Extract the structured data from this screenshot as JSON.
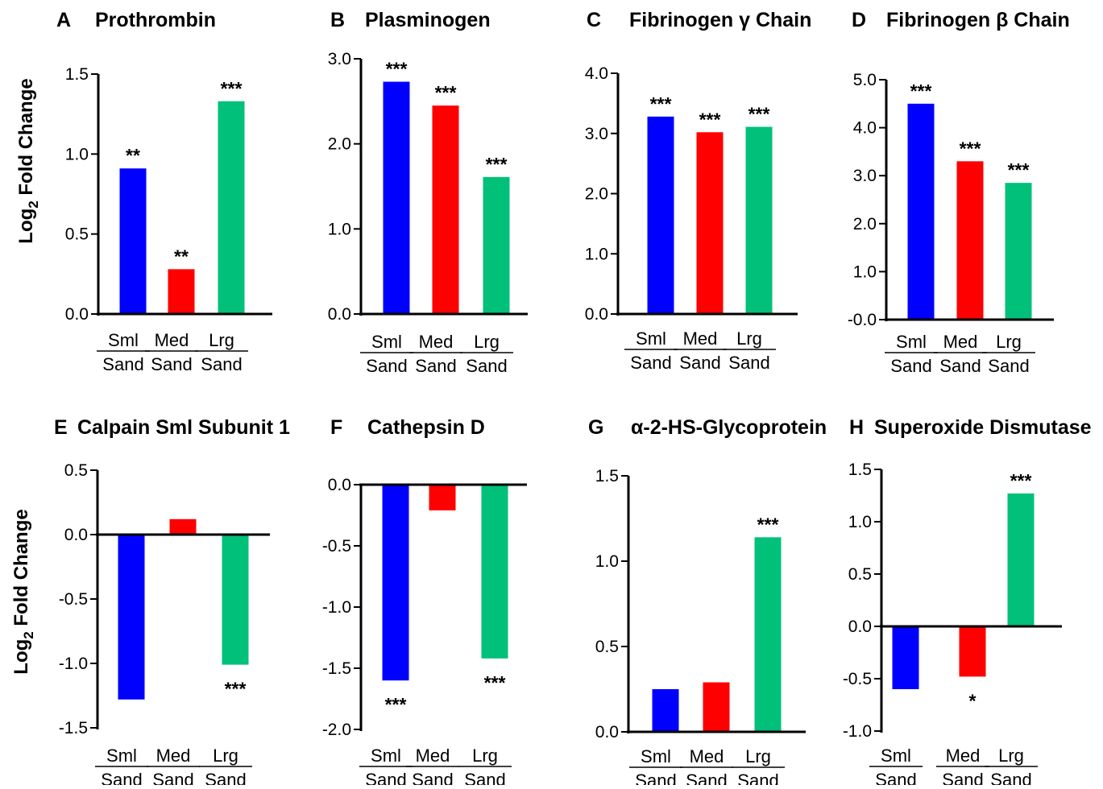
{
  "ylabel": {
    "main": "Log",
    "sub": "2",
    "rest": " Fold Change"
  },
  "bar_colors": {
    "Sml": "#0000ff",
    "Med": "#ff0000",
    "Lrg": "#00c07a"
  },
  "chart_data": [
    {
      "panel": "A",
      "title": "Prothrombin",
      "type": "bar",
      "categories": [
        [
          "Sml",
          "Sand"
        ],
        [
          "Med",
          "Sand"
        ],
        [
          "Lrg",
          "Sand"
        ]
      ],
      "values": [
        0.91,
        0.28,
        1.33
      ],
      "significance": [
        "**",
        "**",
        "***"
      ],
      "ylim": [
        0,
        1.5
      ],
      "ticks": [
        {
          "v": 0,
          "label": "0.0"
        },
        {
          "v": 0.5,
          "label": "0.5"
        },
        {
          "v": 1.0,
          "label": "1.0"
        },
        {
          "v": 1.5,
          "label": "1.5"
        }
      ]
    },
    {
      "panel": "B",
      "title": "Plasminogen",
      "type": "bar",
      "categories": [
        [
          "Sml",
          "Sand"
        ],
        [
          "Med",
          "Sand"
        ],
        [
          "Lrg",
          "Sand"
        ]
      ],
      "values": [
        2.73,
        2.45,
        1.61
      ],
      "significance": [
        "***",
        "***",
        "***"
      ],
      "ylim": [
        0,
        3.0
      ],
      "ticks": [
        {
          "v": 0,
          "label": "0.0"
        },
        {
          "v": 1,
          "label": "1.0"
        },
        {
          "v": 2,
          "label": "2.0"
        },
        {
          "v": 3,
          "label": "3.0"
        }
      ]
    },
    {
      "panel": "C",
      "title": "Fibrinogen γ Chain",
      "type": "bar",
      "categories": [
        [
          "Sml",
          "Sand"
        ],
        [
          "Med",
          "Sand"
        ],
        [
          "Lrg",
          "Sand"
        ]
      ],
      "values": [
        3.28,
        3.02,
        3.11
      ],
      "significance": [
        "***",
        "***",
        "***"
      ],
      "ylim": [
        0,
        4.0
      ],
      "ticks": [
        {
          "v": 0,
          "label": "0.0"
        },
        {
          "v": 1,
          "label": "1.0"
        },
        {
          "v": 2,
          "label": "2.0"
        },
        {
          "v": 3,
          "label": "3.0"
        },
        {
          "v": 4,
          "label": "4.0"
        }
      ]
    },
    {
      "panel": "D",
      "title": "Fibrinogen β Chain",
      "type": "bar",
      "categories": [
        [
          "Sml",
          "Sand"
        ],
        [
          "Med",
          "Sand"
        ],
        [
          "Lrg",
          "Sand"
        ]
      ],
      "values": [
        4.5,
        3.3,
        2.85
      ],
      "significance": [
        "***",
        "***",
        "***"
      ],
      "ylim": [
        0,
        5.0
      ],
      "ticks": [
        {
          "v": 0,
          "label": "-0.0"
        },
        {
          "v": 1,
          "label": "1.0"
        },
        {
          "v": 2,
          "label": "2.0"
        },
        {
          "v": 3,
          "label": "3.0"
        },
        {
          "v": 4,
          "label": "4.0"
        },
        {
          "v": 5,
          "label": "5.0"
        }
      ]
    },
    {
      "panel": "E",
      "title": "Calpain Sml Subunit 1",
      "type": "bar",
      "categories": [
        [
          "Sml",
          "Sand"
        ],
        [
          "Med",
          "Sand"
        ],
        [
          "Lrg",
          "Sand"
        ]
      ],
      "values": [
        -1.28,
        0.12,
        -1.01
      ],
      "significance": [
        "",
        "",
        "***"
      ],
      "ylim": [
        -1.5,
        0.5
      ],
      "ticks": [
        {
          "v": -1.5,
          "label": "-1.5"
        },
        {
          "v": -1.0,
          "label": "-1.0"
        },
        {
          "v": -0.5,
          "label": "-0.5"
        },
        {
          "v": 0,
          "label": "0.0"
        },
        {
          "v": 0.5,
          "label": "0.5"
        }
      ]
    },
    {
      "panel": "F",
      "title": "Cathepsin D",
      "type": "bar",
      "categories": [
        [
          "Sml",
          "Sand"
        ],
        [
          "Med",
          "Sand"
        ],
        [
          "Lrg",
          "Sand"
        ]
      ],
      "values": [
        -1.6,
        -0.21,
        -1.42
      ],
      "significance": [
        "***",
        "",
        "***"
      ],
      "ylim": [
        -2.0,
        0
      ],
      "ticks": [
        {
          "v": -2.0,
          "label": "-2.0"
        },
        {
          "v": -1.5,
          "label": "-1.5"
        },
        {
          "v": -1.0,
          "label": "-1.0"
        },
        {
          "v": -0.5,
          "label": "-0.5"
        },
        {
          "v": 0,
          "label": "0.0"
        }
      ]
    },
    {
      "panel": "G",
      "title": "α-2-HS-Glycoprotein",
      "type": "bar",
      "categories": [
        [
          "Sml",
          "Sand"
        ],
        [
          "Med",
          "Sand"
        ],
        [
          "Lrg",
          "Sand"
        ]
      ],
      "values": [
        0.25,
        0.29,
        1.14
      ],
      "significance": [
        "",
        "",
        "***"
      ],
      "ylim": [
        0,
        1.5
      ],
      "ticks": [
        {
          "v": 0,
          "label": "0.0"
        },
        {
          "v": 0.5,
          "label": "0.5"
        },
        {
          "v": 1.0,
          "label": "1.0"
        },
        {
          "v": 1.5,
          "label": "1.5"
        }
      ]
    },
    {
      "panel": "H",
      "title": "Superoxide Dismutase",
      "type": "bar",
      "categories": [
        [
          "Sml",
          "Sand"
        ],
        [
          "Med",
          "Sand"
        ],
        [
          "Lrg",
          "Sand"
        ]
      ],
      "values": [
        -0.6,
        -0.48,
        1.27
      ],
      "significance": [
        "",
        "*",
        "***"
      ],
      "ylim": [
        -1.0,
        1.5
      ],
      "ticks": [
        {
          "v": -1.0,
          "label": "-1.0"
        },
        {
          "v": -0.5,
          "label": "-0.5"
        },
        {
          "v": 0,
          "label": "0.0"
        },
        {
          "v": 0.5,
          "label": "0.5"
        },
        {
          "v": 1.0,
          "label": "1.0"
        },
        {
          "v": 1.5,
          "label": "1.5"
        }
      ]
    }
  ]
}
